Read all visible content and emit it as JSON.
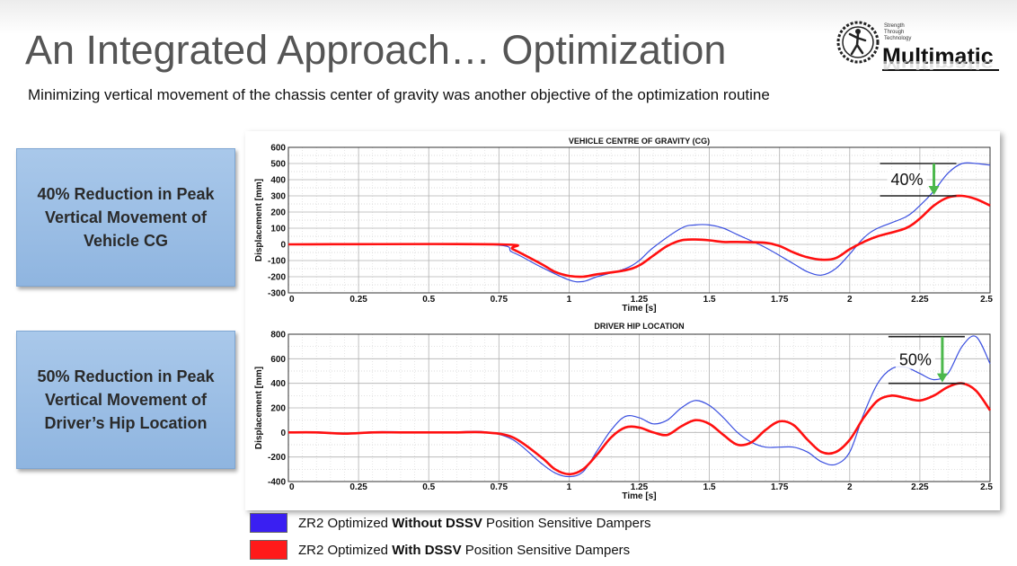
{
  "header": {
    "title": "An Integrated Approach… Optimization",
    "subtitle": "Minimizing vertical movement of the chassis center of gravity was another objective of the optimization routine"
  },
  "logo": {
    "tagline": [
      "Strength",
      "Through",
      "Technology"
    ],
    "name": "Multimatic"
  },
  "callouts": [
    {
      "lines": [
        "40% Reduction in Peak",
        "Vertical Movement of",
        "Vehicle CG"
      ]
    },
    {
      "lines": [
        "50% Reduction in Peak",
        "Vertical Movement of",
        "Driver’s Hip Location"
      ]
    }
  ],
  "legend": [
    {
      "prefix": "ZR2 Optimized ",
      "bold": "Without DSSV",
      "suffix": " Position Sensitive Dampers",
      "color": "#3a1ff2"
    },
    {
      "prefix": "ZR2 Optimized ",
      "bold": "With DSSV",
      "suffix": " Position Sensitive Dampers",
      "color": "#ff1a1a"
    }
  ],
  "chart_data": [
    {
      "type": "line",
      "title": "VEHICLE CENTRE OF GRAVITY (CG)",
      "xlabel": "Time [s]",
      "ylabel": "Displacement [mm]",
      "xlim": [
        0,
        2.5
      ],
      "ylim": [
        -300,
        600
      ],
      "xticks": [
        0,
        0.25,
        0.5,
        0.75,
        1,
        1.25,
        1.5,
        1.75,
        2,
        2.25,
        2.5
      ],
      "xtick_labels": [
        "0",
        "0.25",
        "0.5",
        "0.75",
        "1",
        "1.25",
        "1.5",
        "1.75",
        "2",
        "2.25",
        "2.5"
      ],
      "yticks": [
        -300,
        -200,
        -100,
        0,
        100,
        200,
        300,
        400,
        500,
        600
      ],
      "grid": true,
      "annotation": {
        "text": "40%",
        "top": 500,
        "bottom": 300,
        "x": 2.3
      },
      "series": [
        {
          "color": "#3a4fe0",
          "x": [
            0,
            0.7,
            0.8,
            0.9,
            1.0,
            1.05,
            1.1,
            1.2,
            1.25,
            1.3,
            1.4,
            1.45,
            1.5,
            1.55,
            1.6,
            1.7,
            1.8,
            1.85,
            1.9,
            1.95,
            2.0,
            2.05,
            2.1,
            2.2,
            2.25,
            2.3,
            2.35,
            2.4,
            2.45,
            2.5
          ],
          "y": [
            0,
            0,
            -50,
            -140,
            -220,
            -230,
            -200,
            -150,
            -100,
            -20,
            100,
            120,
            120,
            100,
            60,
            -20,
            -120,
            -170,
            -190,
            -150,
            -60,
            40,
            100,
            170,
            240,
            330,
            440,
            500,
            500,
            490
          ]
        },
        {
          "color": "#ff1010",
          "x": [
            0,
            0.75,
            0.8,
            0.9,
            0.95,
            1.0,
            1.05,
            1.1,
            1.2,
            1.25,
            1.3,
            1.35,
            1.4,
            1.45,
            1.5,
            1.55,
            1.6,
            1.7,
            1.75,
            1.8,
            1.85,
            1.9,
            1.95,
            2.0,
            2.05,
            2.1,
            2.2,
            2.25,
            2.3,
            2.35,
            2.4,
            2.45,
            2.5
          ],
          "y": [
            0,
            0,
            -30,
            -120,
            -170,
            -195,
            -200,
            -185,
            -160,
            -130,
            -70,
            -10,
            25,
            30,
            25,
            15,
            15,
            10,
            -10,
            -50,
            -80,
            -95,
            -85,
            -30,
            15,
            50,
            100,
            160,
            240,
            290,
            300,
            280,
            240
          ]
        }
      ]
    },
    {
      "type": "line",
      "title": "DRIVER HIP LOCATION",
      "xlabel": "Time [s]",
      "ylabel": "Displacement [mm]",
      "xlim": [
        0,
        2.5
      ],
      "ylim": [
        -400,
        800
      ],
      "xticks": [
        0,
        0.25,
        0.5,
        0.75,
        1,
        1.25,
        1.5,
        1.75,
        2,
        2.25,
        2.5
      ],
      "xtick_labels": [
        "0",
        "0.25",
        "0.5",
        "0.75",
        "1",
        "1.25",
        "1.5",
        "1.75",
        "2",
        "2.25",
        "2.5"
      ],
      "yticks": [
        -400,
        -200,
        0,
        200,
        400,
        600,
        800
      ],
      "grid": true,
      "annotation": {
        "text": "50%",
        "top": 780,
        "bottom": 400,
        "x": 2.33
      },
      "series": [
        {
          "color": "#3a4fe0",
          "x": [
            0,
            0.1,
            0.2,
            0.3,
            0.4,
            0.5,
            0.6,
            0.7,
            0.8,
            0.9,
            0.95,
            1.0,
            1.05,
            1.1,
            1.15,
            1.2,
            1.25,
            1.3,
            1.35,
            1.4,
            1.45,
            1.5,
            1.55,
            1.6,
            1.65,
            1.7,
            1.75,
            1.8,
            1.85,
            1.9,
            1.95,
            2.0,
            2.05,
            2.1,
            2.15,
            2.2,
            2.25,
            2.3,
            2.35,
            2.4,
            2.45,
            2.5
          ],
          "y": [
            0,
            5,
            -10,
            5,
            5,
            5,
            5,
            5,
            -60,
            -250,
            -330,
            -360,
            -320,
            -150,
            20,
            130,
            120,
            70,
            100,
            200,
            260,
            220,
            120,
            0,
            -80,
            -120,
            -120,
            -120,
            -160,
            -240,
            -260,
            -160,
            150,
            400,
            520,
            530,
            480,
            430,
            480,
            700,
            780,
            560
          ]
        },
        {
          "color": "#ff1010",
          "x": [
            0,
            0.1,
            0.2,
            0.3,
            0.4,
            0.5,
            0.6,
            0.7,
            0.8,
            0.9,
            0.95,
            1.0,
            1.05,
            1.1,
            1.15,
            1.2,
            1.25,
            1.3,
            1.35,
            1.4,
            1.45,
            1.5,
            1.55,
            1.6,
            1.65,
            1.7,
            1.75,
            1.8,
            1.85,
            1.9,
            1.95,
            2.0,
            2.05,
            2.1,
            2.15,
            2.2,
            2.25,
            2.3,
            2.35,
            2.4,
            2.45,
            2.5
          ],
          "y": [
            0,
            0,
            -10,
            0,
            0,
            0,
            0,
            0,
            -40,
            -200,
            -300,
            -340,
            -300,
            -180,
            -40,
            40,
            40,
            0,
            -20,
            50,
            100,
            70,
            -20,
            -100,
            -80,
            20,
            90,
            60,
            -60,
            -160,
            -160,
            -60,
            120,
            260,
            300,
            280,
            260,
            300,
            370,
            400,
            340,
            180
          ]
        }
      ]
    }
  ]
}
